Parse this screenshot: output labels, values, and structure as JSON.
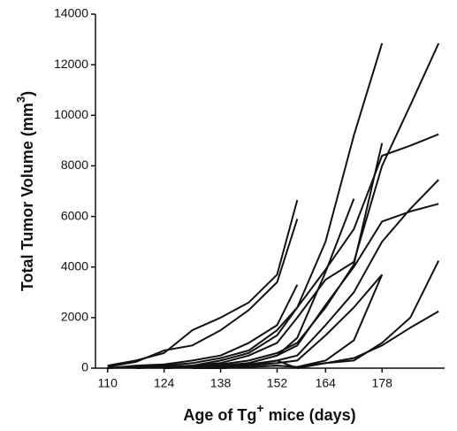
{
  "chart_data": {
    "type": "line",
    "ylabel": [
      "Total Tumor Volume (mm",
      "3",
      ")"
    ],
    "xlabel": [
      "Age of Tg",
      "+",
      " mice (days)"
    ],
    "x": [
      110,
      117,
      124,
      131,
      138,
      145,
      152,
      157,
      164,
      171,
      178,
      185,
      192
    ],
    "xlim": [
      107,
      193.5
    ],
    "xticks": [
      110,
      124,
      138,
      152,
      164,
      178
    ],
    "ylim": [
      0,
      14000
    ],
    "yticks": [
      0,
      2000,
      4000,
      6000,
      8000,
      10000,
      12000,
      14000
    ],
    "series": [
      {
        "color": "#111111",
        "values": [
          100,
          300,
          600,
          1500,
          2000,
          2600,
          3700,
          6650,
          null,
          null,
          null,
          null,
          null
        ]
      },
      {
        "color": "#111111",
        "values": [
          50,
          250,
          700,
          900,
          1500,
          2300,
          3400,
          5900,
          null,
          null,
          null,
          null,
          null
        ]
      },
      {
        "color": "#111111",
        "values": [
          0,
          100,
          150,
          300,
          500,
          1000,
          1700,
          3300,
          null,
          null,
          null,
          null,
          null
        ]
      },
      {
        "color": "#111111",
        "values": [
          0,
          50,
          100,
          200,
          400,
          700,
          1500,
          2400,
          5000,
          9200,
          12850,
          null,
          null
        ]
      },
      {
        "color": "#111111",
        "values": [
          null,
          0,
          50,
          100,
          200,
          500,
          1000,
          2000,
          3500,
          4200,
          8000,
          10400,
          12850
        ]
      },
      {
        "color": "#111111",
        "values": [
          null,
          0,
          50,
          100,
          300,
          600,
          1300,
          2400,
          3900,
          5500,
          8400,
          8800,
          9250
        ]
      },
      {
        "color": "#111111",
        "values": [
          null,
          null,
          0,
          50,
          150,
          300,
          600,
          1000,
          2400,
          4100,
          8900,
          null,
          null
        ]
      },
      {
        "color": "#111111",
        "values": [
          null,
          null,
          0,
          50,
          100,
          200,
          500,
          900,
          2500,
          4000,
          5800,
          6200,
          6500
        ]
      },
      {
        "color": "#111111",
        "values": [
          null,
          null,
          0,
          50,
          100,
          150,
          300,
          500,
          1700,
          3000,
          5000,
          6300,
          7450
        ]
      },
      {
        "color": "#111111",
        "values": [
          null,
          null,
          null,
          0,
          50,
          100,
          200,
          300,
          1300,
          2400,
          3700,
          null,
          null
        ]
      },
      {
        "color": "#111111",
        "values": [
          null,
          null,
          null,
          0,
          0,
          50,
          100,
          50,
          300,
          1100,
          3700,
          null,
          null
        ]
      },
      {
        "color": "#111111",
        "values": [
          null,
          null,
          null,
          null,
          0,
          50,
          100,
          50,
          200,
          300,
          1000,
          2000,
          4250
        ]
      },
      {
        "color": "#111111",
        "values": [
          null,
          null,
          null,
          null,
          0,
          100,
          300,
          0,
          200,
          400,
          900,
          1600,
          2250
        ]
      },
      {
        "color": "#111111",
        "values": [
          null,
          null,
          null,
          null,
          50,
          200,
          500,
          1200,
          3800,
          6700,
          null,
          null,
          null
        ]
      }
    ]
  }
}
